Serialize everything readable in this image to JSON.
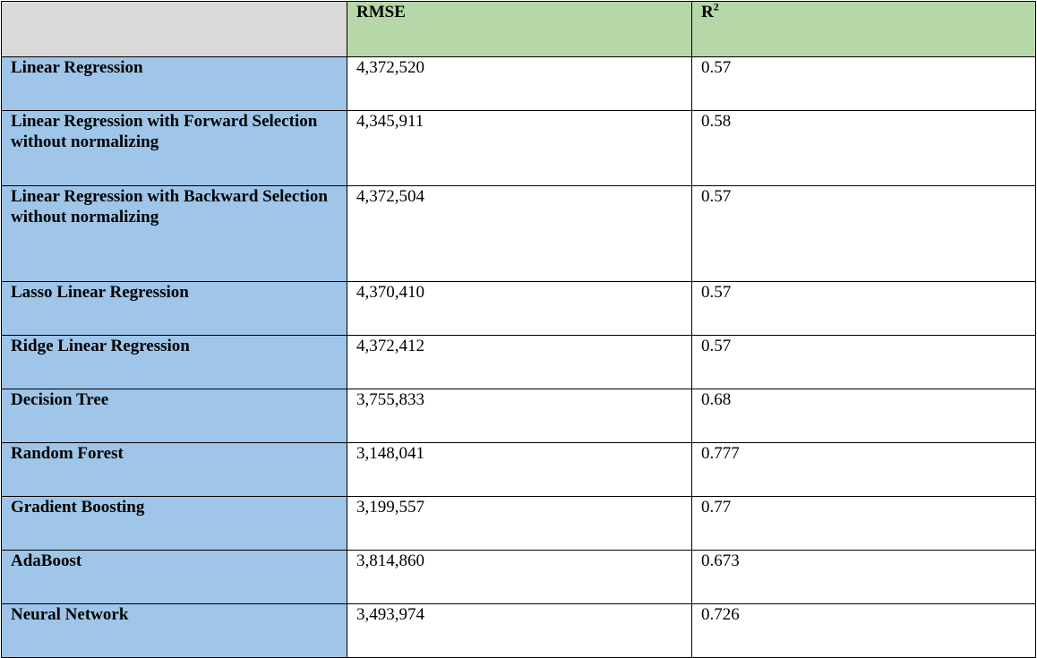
{
  "table": {
    "header": {
      "corner": "",
      "rmse": "RMSE",
      "r2_base": "R",
      "r2_exp": "2"
    },
    "rows": [
      {
        "model": "Linear Regression",
        "rmse": "4,372,520",
        "r2": "0.57"
      },
      {
        "model": "Linear Regression with Forward Selection without normalizing",
        "rmse": "4,345,911",
        "r2": "0.58"
      },
      {
        "model": "Linear Regression with Backward Selection without normalizing",
        "rmse": "4,372,504",
        "r2": "0.57"
      },
      {
        "model": "Lasso Linear Regression",
        "rmse": "4,370,410",
        "r2": "0.57"
      },
      {
        "model": "Ridge Linear Regression",
        "rmse": "4,372,412",
        "r2": "0.57"
      },
      {
        "model": "Decision Tree",
        "rmse": "3,755,833",
        "r2": "0.68"
      },
      {
        "model": "Random Forest",
        "rmse": "3,148,041",
        "r2": "0.777"
      },
      {
        "model": "Gradient Boosting",
        "rmse": "3,199,557",
        "r2": "0.77"
      },
      {
        "model": "AdaBoost",
        "rmse": "3,814,860",
        "r2": "0.673"
      },
      {
        "model": "Neural Network",
        "rmse": "3,493,974",
        "r2": "0.726"
      }
    ]
  },
  "colors": {
    "header_fill": "#b6d7a8",
    "corner_fill": "#d9d9d9",
    "row_label_fill": "#9fc5e8",
    "cell_fill": "#ffffff",
    "border": "#000000"
  }
}
